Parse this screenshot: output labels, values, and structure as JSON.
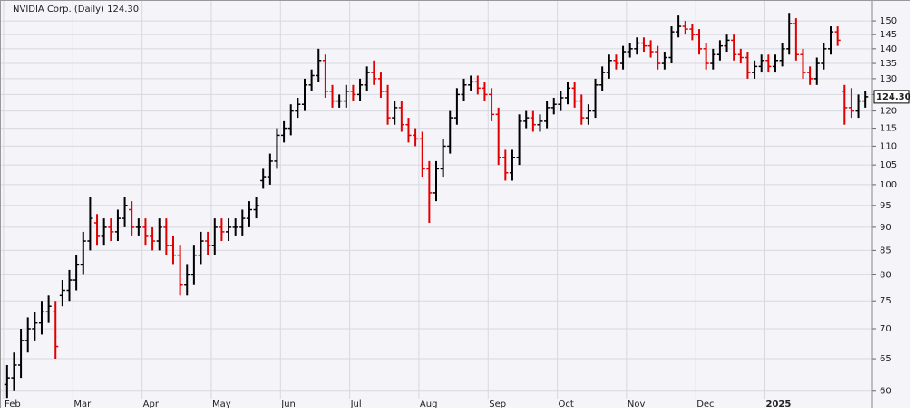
{
  "chart_data": {
    "type": "ohlc",
    "title": "NVIDIA Corp. (Daily) 124.30",
    "last_price_label": "124.30",
    "log_scale": true,
    "grid": true,
    "up_color": "#000000",
    "down_color": "#e00000",
    "ylim": [
      58.9,
      156.2
    ],
    "yticks": [
      60,
      65,
      70,
      75,
      80,
      85,
      90,
      95,
      100,
      105,
      110,
      115,
      120,
      125,
      130,
      135,
      140,
      145,
      150
    ],
    "categories": [
      "Feb",
      null,
      null,
      null,
      null,
      null,
      null,
      null,
      null,
      null,
      "Mar",
      null,
      null,
      null,
      null,
      null,
      null,
      null,
      null,
      null,
      "Apr",
      null,
      null,
      null,
      null,
      null,
      null,
      null,
      null,
      null,
      "May",
      null,
      null,
      null,
      null,
      null,
      null,
      null,
      null,
      null,
      "Jun",
      null,
      null,
      null,
      null,
      null,
      null,
      null,
      null,
      null,
      "Jul",
      null,
      null,
      null,
      null,
      null,
      null,
      null,
      null,
      null,
      "Aug",
      null,
      null,
      null,
      null,
      null,
      null,
      null,
      null,
      null,
      "Sep",
      null,
      null,
      null,
      null,
      null,
      null,
      null,
      null,
      null,
      "Oct",
      null,
      null,
      null,
      null,
      null,
      null,
      null,
      null,
      null,
      "Nov",
      null,
      null,
      null,
      null,
      null,
      null,
      null,
      null,
      null,
      "Dec",
      null,
      null,
      null,
      null,
      null,
      null,
      null,
      null,
      null,
      "2025",
      null,
      null,
      null,
      null,
      null,
      null,
      null,
      null,
      null,
      null,
      null,
      null,
      null,
      null
    ],
    "open": [
      61,
      62,
      64,
      68,
      70,
      71,
      73,
      73,
      76,
      77,
      79,
      82,
      87,
      91,
      88,
      90,
      89,
      92,
      94,
      90,
      90,
      88,
      87,
      90,
      86,
      84,
      78,
      80,
      84,
      87,
      86,
      90,
      89,
      90,
      90,
      92,
      94,
      101,
      102,
      106,
      113,
      115,
      120,
      122,
      128,
      131,
      136,
      126,
      123,
      123,
      126,
      125,
      128,
      132,
      130,
      126,
      118,
      121,
      116,
      113,
      112,
      104,
      98,
      104,
      110,
      118,
      125,
      128,
      129,
      127,
      125,
      119,
      107,
      103,
      107,
      117,
      118,
      116,
      117,
      121,
      122,
      124,
      127,
      123,
      118,
      120,
      128,
      132,
      136,
      135,
      139,
      140,
      142,
      141,
      139,
      135,
      137,
      146,
      148,
      147,
      145,
      140,
      135,
      138,
      141,
      143,
      138,
      137,
      132,
      134,
      136,
      134,
      136,
      140,
      149,
      138,
      132,
      130,
      135,
      140,
      146,
      126,
      121,
      120,
      123
    ],
    "high": [
      64,
      66,
      70,
      72,
      73,
      75,
      76,
      75,
      79,
      81,
      84,
      89,
      97,
      93,
      92,
      92,
      94,
      97,
      96,
      92,
      92,
      90,
      92,
      92,
      88,
      86,
      82,
      86,
      89,
      89,
      92,
      92,
      92,
      92,
      94,
      96,
      97,
      104,
      108,
      115,
      117,
      122,
      124,
      130,
      133,
      140,
      138,
      128,
      125,
      128,
      128,
      130,
      134,
      136,
      132,
      128,
      123,
      123,
      118,
      115,
      114,
      106,
      106,
      112,
      120,
      127,
      130,
      131,
      131,
      129,
      127,
      121,
      109,
      109,
      119,
      120,
      120,
      119,
      123,
      124,
      126,
      129,
      129,
      125,
      122,
      130,
      134,
      138,
      138,
      141,
      142,
      144,
      144,
      143,
      141,
      139,
      148,
      152,
      150,
      149,
      147,
      142,
      140,
      143,
      145,
      145,
      140,
      139,
      136,
      138,
      138,
      138,
      142,
      153,
      151,
      140,
      134,
      137,
      142,
      148,
      148,
      128,
      127,
      125,
      126
    ],
    "low": [
      59,
      60,
      62,
      66,
      68,
      69,
      71,
      65,
      74,
      75,
      77,
      80,
      85,
      86,
      86,
      87,
      87,
      90,
      88,
      88,
      86,
      85,
      85,
      84,
      82,
      76,
      76,
      78,
      82,
      84,
      84,
      87,
      87,
      88,
      88,
      90,
      92,
      99,
      100,
      104,
      111,
      113,
      118,
      120,
      126,
      129,
      124,
      121,
      121,
      121,
      123,
      123,
      126,
      128,
      124,
      116,
      116,
      114,
      111,
      110,
      102,
      91,
      96,
      102,
      108,
      116,
      123,
      126,
      125,
      123,
      117,
      105,
      101,
      101,
      105,
      115,
      114,
      114,
      115,
      119,
      120,
      122,
      121,
      116,
      116,
      118,
      126,
      130,
      133,
      133,
      137,
      138,
      139,
      137,
      133,
      133,
      135,
      144,
      145,
      143,
      138,
      133,
      133,
      136,
      139,
      136,
      135,
      130,
      130,
      132,
      132,
      132,
      134,
      138,
      136,
      130,
      128,
      128,
      133,
      138,
      141,
      116,
      118,
      118,
      121
    ],
    "close": [
      62,
      64,
      68,
      70,
      71,
      73,
      74,
      67,
      77,
      79,
      82,
      87,
      92,
      88,
      90,
      89,
      92,
      95,
      90,
      90,
      88,
      87,
      90,
      86,
      84,
      78,
      80,
      84,
      87,
      86,
      90,
      89,
      90,
      90,
      92,
      94,
      95,
      102,
      106,
      113,
      115,
      120,
      122,
      128,
      131,
      136,
      126,
      123,
      123,
      126,
      125,
      128,
      132,
      130,
      126,
      118,
      121,
      116,
      113,
      112,
      104,
      98,
      104,
      110,
      118,
      125,
      128,
      129,
      127,
      125,
      119,
      107,
      103,
      107,
      117,
      118,
      116,
      117,
      121,
      122,
      124,
      127,
      123,
      118,
      120,
      128,
      132,
      136,
      135,
      139,
      140,
      142,
      141,
      139,
      135,
      137,
      146,
      148,
      147,
      145,
      140,
      135,
      138,
      141,
      143,
      138,
      137,
      132,
      134,
      136,
      134,
      136,
      140,
      149,
      138,
      132,
      130,
      135,
      140,
      146,
      143,
      121,
      120,
      123,
      124.3
    ]
  }
}
